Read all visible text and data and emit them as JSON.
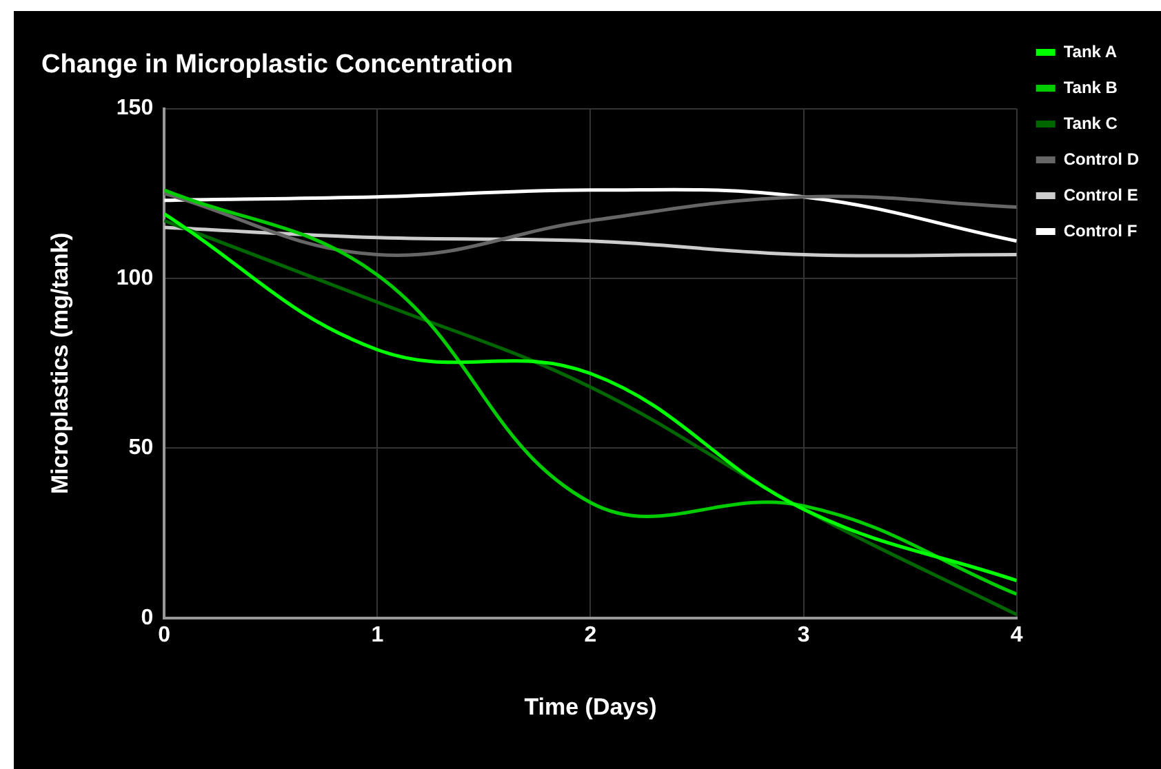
{
  "chart_data": {
    "type": "line",
    "title": "Change in Microplastic Concentration",
    "xlabel": "Time (Days)",
    "ylabel": "Microplastics (mg/tank)",
    "x": [
      0,
      1,
      2,
      3,
      4
    ],
    "xlim": [
      0,
      4
    ],
    "xticks": [
      0,
      1,
      2,
      3,
      4
    ],
    "ylim": [
      0,
      150
    ],
    "yticks": [
      0,
      50,
      100,
      150
    ],
    "grid": true,
    "legend": "right",
    "marker": "none",
    "line_style": "solid",
    "series": [
      {
        "name": "Tank A",
        "color": "#00ff00",
        "values": [
          119,
          79,
          72,
          32,
          11
        ]
      },
      {
        "name": "Tank B",
        "color": "#00cc00",
        "values": [
          126,
          101,
          34,
          33,
          7
        ]
      },
      {
        "name": "Tank C",
        "color": "#006600",
        "values": [
          117,
          93,
          68,
          32,
          1
        ]
      },
      {
        "name": "Control D",
        "color": "#666666",
        "values": [
          125,
          107,
          117,
          124,
          121
        ]
      },
      {
        "name": "Control E",
        "color": "#cccccc",
        "values": [
          115,
          112,
          111,
          107,
          107
        ]
      },
      {
        "name": "Control F",
        "color": "#ffffff",
        "values": [
          123,
          124,
          126,
          124,
          111
        ]
      }
    ]
  }
}
